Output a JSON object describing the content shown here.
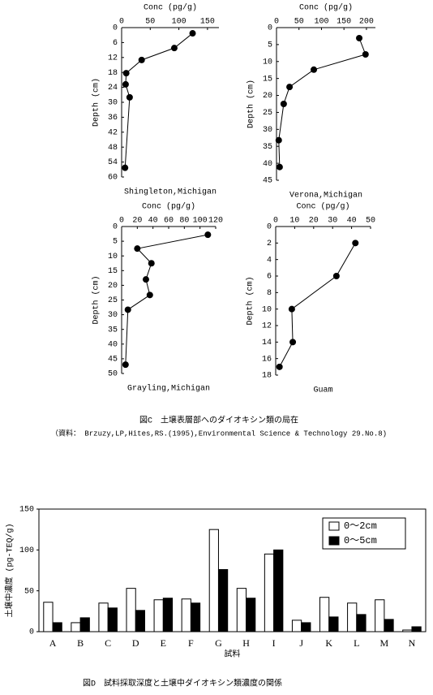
{
  "chart_data": [
    {
      "type": "profile",
      "xlabel": "Conc (pg/g)",
      "ylabel": "Depth (cm)",
      "label": "Shingleton,Michigan",
      "x": [
        124,
        92,
        35,
        8,
        7,
        14,
        6
      ],
      "y": [
        2.3,
        8.2,
        13,
        18.3,
        22.8,
        28,
        56.3
      ],
      "xlim": [
        0,
        170
      ],
      "xticks": [
        0,
        50,
        100,
        150
      ],
      "ylim": [
        0,
        60
      ],
      "yticks": [
        0,
        6,
        12,
        18,
        24,
        30,
        36,
        42,
        48,
        54,
        60
      ],
      "color": "#000000"
    },
    {
      "type": "profile",
      "xlabel": "Conc (pg/g)",
      "ylabel": "Depth (cm)",
      "label": "Verona,Michigan",
      "x": [
        184,
        198,
        83,
        29,
        16,
        5,
        7
      ],
      "y": [
        3.1,
        7.9,
        12.4,
        17.5,
        22.5,
        33.2,
        41.1
      ],
      "xlim": [
        0,
        220
      ],
      "xticks": [
        0,
        50,
        100,
        150,
        200
      ],
      "ylim": [
        0,
        45
      ],
      "yticks": [
        0,
        5,
        10,
        15,
        20,
        25,
        30,
        35,
        40,
        45
      ],
      "color": "#000000"
    },
    {
      "type": "profile",
      "xlabel": "Conc (pg/g)",
      "ylabel": "Depth (cm)",
      "label": "Grayling,Michigan",
      "x": [
        110,
        20,
        38,
        31,
        36,
        8,
        5
      ],
      "y": [
        2.8,
        7.5,
        12.5,
        18,
        23.3,
        28.3,
        47
      ],
      "xlim": [
        0,
        120
      ],
      "xticks": [
        0,
        20,
        40,
        60,
        80,
        100,
        120
      ],
      "ylim": [
        0,
        50
      ],
      "yticks": [
        0,
        5,
        10,
        15,
        20,
        25,
        30,
        35,
        40,
        45,
        50
      ],
      "color": "#000000"
    },
    {
      "type": "profile",
      "xlabel": "Conc (pg/g)",
      "ylabel": "Depth (cm)",
      "label": "Guam",
      "x": [
        42,
        32,
        8.5,
        9,
        2
      ],
      "y": [
        2,
        6,
        10,
        14,
        17
      ],
      "xlim": [
        0,
        50
      ],
      "xticks": [
        0,
        10,
        20,
        30,
        40,
        50
      ],
      "ylim": [
        0,
        18
      ],
      "yticks": [
        0,
        2,
        4,
        6,
        8,
        10,
        12,
        14,
        16,
        18
      ],
      "color": "#000000"
    },
    {
      "type": "bar",
      "ylabel": "土壌中濃度 (pg-TEQ/g)",
      "xlabel": "試料",
      "categories": [
        "A",
        "B",
        "C",
        "D",
        "E",
        "F",
        "G",
        "H",
        "I",
        "J",
        "K",
        "L",
        "M",
        "N"
      ],
      "series": [
        {
          "name": "0～2cm",
          "color": "#ffffff",
          "values": [
            36,
            11,
            35,
            53,
            39,
            40,
            125,
            53,
            95,
            14,
            42,
            35,
            39,
            2
          ]
        },
        {
          "name": "0～5cm",
          "color": "#000000",
          "values": [
            11,
            17,
            29,
            26,
            41,
            35,
            76,
            41,
            100,
            11,
            18,
            21,
            15,
            6
          ]
        }
      ],
      "ylim": [
        0,
        150
      ],
      "yticks": [
        0,
        50,
        100,
        150
      ]
    }
  ],
  "captions": [
    "図C　土壌表層部へのダイオキシン類の局在",
    "（資料： Brzuzy,LP,Hites,RS.(1995),Environmental Science & Technology 29.No.8)",
    "図D　試料採取深度と土壌中ダイオキシン類濃度の関係"
  ]
}
